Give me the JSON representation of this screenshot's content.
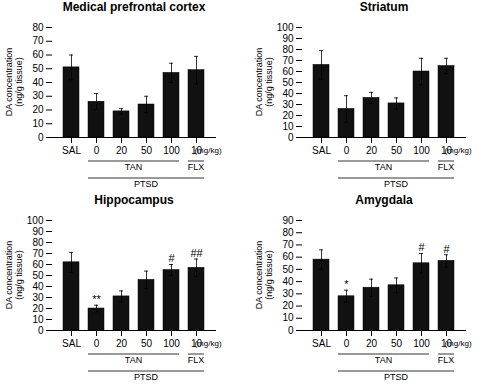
{
  "chart_data": [
    {
      "type": "bar",
      "title": "Medical prefrontal cortex",
      "ylabel": "DA concentration\n(ng/g tissue)",
      "xlabel": "(mg/kg)",
      "categories": [
        "SAL",
        "0",
        "20",
        "50",
        "100",
        "10"
      ],
      "values": [
        51,
        26,
        19,
        24,
        47,
        49
      ],
      "errors": [
        9,
        6,
        2,
        6,
        7,
        10
      ],
      "color": "#111111",
      "ylim": [
        0,
        80
      ],
      "yticks": [
        0,
        10,
        20,
        30,
        40,
        50,
        60,
        70,
        80
      ],
      "grid": false,
      "annotations": [],
      "groups": [
        {
          "label": "TAN",
          "categories": [
            "0",
            "20",
            "50",
            "100"
          ]
        },
        {
          "label": "FLX",
          "categories": [
            "10"
          ]
        },
        {
          "label": "PTSD",
          "categories": [
            "0",
            "20",
            "50",
            "100",
            "10"
          ]
        }
      ]
    },
    {
      "type": "bar",
      "title": "Striatum",
      "ylabel": "DA concentration\n(ng/g tissue)",
      "xlabel": "(mg/kg)",
      "categories": [
        "SAL",
        "0",
        "20",
        "50",
        "100",
        "10"
      ],
      "values": [
        66,
        26,
        36,
        31,
        60,
        65
      ],
      "errors": [
        13,
        12,
        5,
        5,
        12,
        7
      ],
      "color": "#111111",
      "ylim": [
        0,
        100
      ],
      "yticks": [
        0,
        10,
        20,
        30,
        40,
        50,
        60,
        70,
        80,
        90,
        100
      ],
      "grid": false,
      "annotations": [],
      "groups": [
        {
          "label": "TAN",
          "categories": [
            "0",
            "20",
            "50",
            "100"
          ]
        },
        {
          "label": "FLX",
          "categories": [
            "10"
          ]
        },
        {
          "label": "PTSD",
          "categories": [
            "0",
            "20",
            "50",
            "100",
            "10"
          ]
        }
      ]
    },
    {
      "type": "bar",
      "title": "Hippocampus",
      "ylabel": "DA concentration\n(ng/g tissue)",
      "xlabel": "(mg/kg)",
      "categories": [
        "SAL",
        "0",
        "20",
        "50",
        "100",
        "10"
      ],
      "values": [
        62,
        20,
        31,
        46,
        55,
        57
      ],
      "errors": [
        9,
        3,
        5,
        8,
        5,
        8
      ],
      "color": "#111111",
      "ylim": [
        0,
        100
      ],
      "yticks": [
        0,
        10,
        20,
        30,
        40,
        50,
        60,
        70,
        80,
        90,
        100
      ],
      "grid": false,
      "annotations": [
        {
          "category": "0",
          "text": "**"
        },
        {
          "category": "100",
          "text": "#"
        },
        {
          "category": "10",
          "text": "##"
        }
      ],
      "groups": [
        {
          "label": "TAN",
          "categories": [
            "0",
            "20",
            "50",
            "100"
          ]
        },
        {
          "label": "FLX",
          "categories": [
            "10"
          ]
        },
        {
          "label": "PTSD",
          "categories": [
            "0",
            "20",
            "50",
            "100",
            "10"
          ]
        }
      ]
    },
    {
      "type": "bar",
      "title": "Amygdala",
      "ylabel": "DA concentration\n(ng/g tissue)",
      "xlabel": "(mg/kg)",
      "categories": [
        "SAL",
        "0",
        "20",
        "50",
        "100",
        "10"
      ],
      "values": [
        58,
        28,
        35,
        37,
        55,
        57
      ],
      "errors": [
        8,
        5,
        7,
        6,
        8,
        5
      ],
      "color": "#111111",
      "ylim": [
        0,
        90
      ],
      "yticks": [
        0,
        10,
        20,
        30,
        40,
        50,
        60,
        70,
        80,
        90
      ],
      "grid": false,
      "annotations": [
        {
          "category": "0",
          "text": "*"
        },
        {
          "category": "100",
          "text": "#"
        },
        {
          "category": "10",
          "text": "#"
        }
      ],
      "groups": [
        {
          "label": "TAN",
          "categories": [
            "0",
            "20",
            "50",
            "100"
          ]
        },
        {
          "label": "FLX",
          "categories": [
            "10"
          ]
        },
        {
          "label": "PTSD",
          "categories": [
            "0",
            "20",
            "50",
            "100",
            "10"
          ]
        }
      ]
    }
  ]
}
